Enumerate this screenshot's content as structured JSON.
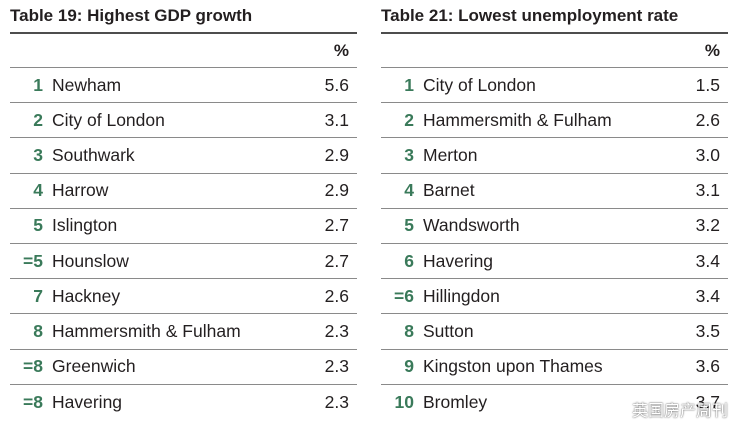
{
  "left_table": {
    "title": "Table 19: Highest GDP growth",
    "unit": "%",
    "rows": [
      {
        "rank": "1",
        "name": "Newham",
        "value": "5.6"
      },
      {
        "rank": "2",
        "name": "City of London",
        "value": "3.1"
      },
      {
        "rank": "3",
        "name": "Southwark",
        "value": "2.9"
      },
      {
        "rank": "4",
        "name": "Harrow",
        "value": "2.9"
      },
      {
        "rank": "5",
        "name": "Islington",
        "value": "2.7"
      },
      {
        "rank": "=5",
        "name": "Hounslow",
        "value": "2.7"
      },
      {
        "rank": "7",
        "name": "Hackney",
        "value": "2.6"
      },
      {
        "rank": "8",
        "name": "Hammersmith & Fulham",
        "value": "2.3"
      },
      {
        "rank": "=8",
        "name": "Greenwich",
        "value": "2.3"
      },
      {
        "rank": "=8",
        "name": "Havering",
        "value": "2.3"
      }
    ]
  },
  "right_table": {
    "title": "Table 21: Lowest unemployment rate",
    "unit": "%",
    "rows": [
      {
        "rank": "1",
        "name": "City of London",
        "value": "1.5"
      },
      {
        "rank": "2",
        "name": "Hammersmith & Fulham",
        "value": "2.6"
      },
      {
        "rank": "3",
        "name": "Merton",
        "value": "3.0"
      },
      {
        "rank": "4",
        "name": "Barnet",
        "value": "3.1"
      },
      {
        "rank": "5",
        "name": "Wandsworth",
        "value": "3.2"
      },
      {
        "rank": "6",
        "name": "Havering",
        "value": "3.4"
      },
      {
        "rank": "=6",
        "name": "Hillingdon",
        "value": "3.4"
      },
      {
        "rank": "8",
        "name": "Sutton",
        "value": "3.5"
      },
      {
        "rank": "9",
        "name": "Kingston upon Thames",
        "value": "3.6"
      },
      {
        "rank": "10",
        "name": "Bromley",
        "value": "3.7"
      }
    ]
  },
  "watermark": {
    "text": "英国房产周刊",
    "icon": "wechat-icon"
  },
  "colors": {
    "rank_green": "#3a7a5a",
    "text": "#231f20",
    "rule": "#8a8a8a"
  }
}
